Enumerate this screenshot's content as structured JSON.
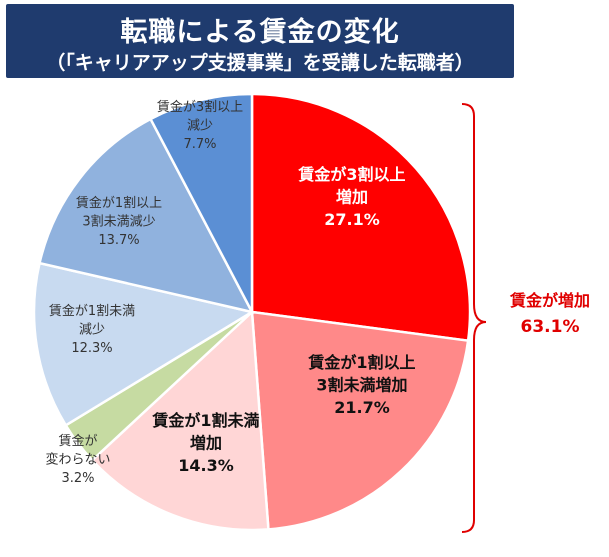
{
  "header": {
    "title": "転職による賃金の変化",
    "subtitle": "（「キャリアアップ支援事業」を受講した転職者）"
  },
  "chart_data": {
    "type": "pie",
    "title": "転職による賃金の変化",
    "subtitle": "（「キャリアアップ支援事業」を受講した転職者）",
    "unit": "%",
    "start": "12 o'clock",
    "direction": "clockwise",
    "slices": [
      {
        "label_lines": [
          "賃金が3割以上",
          "増加"
        ],
        "value": 27.1,
        "value_label": "27.1%",
        "color": "#ff0000",
        "text_color": "#ffffff"
      },
      {
        "label_lines": [
          "賃金が1割以上",
          "3割未満増加"
        ],
        "value": 21.7,
        "value_label": "21.7%",
        "color": "#ff8989",
        "text_color": "#111111"
      },
      {
        "label_lines": [
          "賃金が1割未満",
          "増加"
        ],
        "value": 14.3,
        "value_label": "14.3%",
        "color": "#ffd6d6",
        "text_color": "#111111"
      },
      {
        "label_lines": [
          "賃金が",
          "変わらない"
        ],
        "value": 3.2,
        "value_label": "3.2%",
        "color": "#c6dba2",
        "text_color": "#333333"
      },
      {
        "label_lines": [
          "賃金が1割未満",
          "減少"
        ],
        "value": 12.3,
        "value_label": "12.3%",
        "color": "#c8daf0",
        "text_color": "#333333"
      },
      {
        "label_lines": [
          "賃金が1割以上",
          "3割未満減少"
        ],
        "value": 13.7,
        "value_label": "13.7%",
        "color": "#90b2de",
        "text_color": "#333333"
      },
      {
        "label_lines": [
          "賃金が3割以上",
          "減少"
        ],
        "value": 7.7,
        "value_label": "7.7%",
        "color": "#5b8fd4",
        "text_color": "#333333"
      }
    ],
    "bracket_annotation": {
      "label": "賃金が増加",
      "value_label": "63.1%",
      "color": "#e00000"
    }
  }
}
